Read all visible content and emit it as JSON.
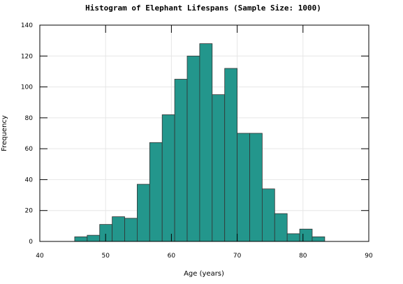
{
  "chart_data": {
    "type": "bar",
    "title": "Histogram of Elephant Lifespans (Sample Size: 1000)",
    "xlabel": "Age (years)",
    "ylabel": "Frequency",
    "xlim": [
      40,
      90
    ],
    "ylim": [
      0,
      140
    ],
    "x_ticks": [
      40,
      50,
      60,
      70,
      80,
      90
    ],
    "y_ticks": [
      0,
      20,
      40,
      60,
      80,
      100,
      120,
      140
    ],
    "grid": true,
    "bar_color": "#23968c",
    "bar_edge_color": "#333333",
    "bins": [
      {
        "x0": 45.3,
        "x1": 47.2,
        "count": 3
      },
      {
        "x0": 47.2,
        "x1": 49.1,
        "count": 4
      },
      {
        "x0": 49.1,
        "x1": 51.0,
        "count": 11
      },
      {
        "x0": 51.0,
        "x1": 52.9,
        "count": 16
      },
      {
        "x0": 52.9,
        "x1": 54.8,
        "count": 15
      },
      {
        "x0": 54.8,
        "x1": 56.7,
        "count": 37
      },
      {
        "x0": 56.7,
        "x1": 58.6,
        "count": 64
      },
      {
        "x0": 58.6,
        "x1": 60.5,
        "count": 82
      },
      {
        "x0": 60.5,
        "x1": 62.4,
        "count": 105
      },
      {
        "x0": 62.4,
        "x1": 64.3,
        "count": 120
      },
      {
        "x0": 64.3,
        "x1": 66.2,
        "count": 128
      },
      {
        "x0": 66.2,
        "x1": 68.1,
        "count": 95
      },
      {
        "x0": 68.1,
        "x1": 70.0,
        "count": 112
      },
      {
        "x0": 70.0,
        "x1": 71.9,
        "count": 70
      },
      {
        "x0": 71.9,
        "x1": 73.8,
        "count": 70
      },
      {
        "x0": 73.8,
        "x1": 75.7,
        "count": 34
      },
      {
        "x0": 75.7,
        "x1": 77.6,
        "count": 18
      },
      {
        "x0": 77.6,
        "x1": 79.5,
        "count": 5
      },
      {
        "x0": 79.5,
        "x1": 81.4,
        "count": 8
      },
      {
        "x0": 81.4,
        "x1": 83.3,
        "count": 3
      }
    ]
  }
}
